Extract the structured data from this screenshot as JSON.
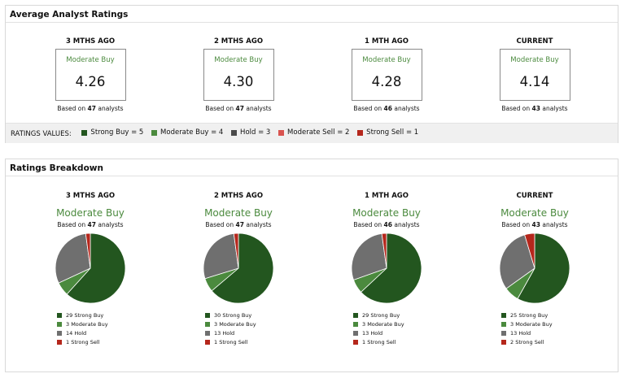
{
  "colors": {
    "strong_buy": "#23561f",
    "moderate_buy": "#4b8a3e",
    "hold": "#6f6f6f",
    "moderate_sell": "#d9534f",
    "strong_sell": "#b5271c"
  },
  "average": {
    "title": "Average Analyst Ratings",
    "based_prefix": "Based on",
    "based_suffix": "analysts",
    "periods": [
      {
        "label": "3 MTHS AGO",
        "rating": "Moderate Buy",
        "value": "4.26",
        "analysts": "47"
      },
      {
        "label": "2 MTHS AGO",
        "rating": "Moderate Buy",
        "value": "4.30",
        "analysts": "47"
      },
      {
        "label": "1 MTH AGO",
        "rating": "Moderate Buy",
        "value": "4.28",
        "analysts": "46"
      },
      {
        "label": "CURRENT",
        "rating": "Moderate Buy",
        "value": "4.14",
        "analysts": "43"
      }
    ]
  },
  "ratings_values": {
    "label": "RATINGS VALUES:",
    "items": [
      {
        "text": "Strong Buy = 5",
        "color": "#23561f"
      },
      {
        "text": "Moderate Buy = 4",
        "color": "#4b8a3e"
      },
      {
        "text": "Hold = 3",
        "color": "#4a4a4a"
      },
      {
        "text": "Moderate Sell = 2",
        "color": "#d9534f"
      },
      {
        "text": "Strong Sell = 1",
        "color": "#b5271c"
      }
    ]
  },
  "breakdown": {
    "title": "Ratings Breakdown",
    "periods": [
      {
        "label": "3 MTHS AGO",
        "rating": "Moderate Buy",
        "analysts": "47",
        "legend": [
          "29 Strong Buy",
          "3 Moderate Buy",
          "14 Hold",
          "1 Strong Sell"
        ]
      },
      {
        "label": "2 MTHS AGO",
        "rating": "Moderate Buy",
        "analysts": "47",
        "legend": [
          "30 Strong Buy",
          "3 Moderate Buy",
          "13 Hold",
          "1 Strong Sell"
        ]
      },
      {
        "label": "1 MTH AGO",
        "rating": "Moderate Buy",
        "analysts": "46",
        "legend": [
          "29 Strong Buy",
          "3 Moderate Buy",
          "13 Hold",
          "1 Strong Sell"
        ]
      },
      {
        "label": "CURRENT",
        "rating": "Moderate Buy",
        "analysts": "43",
        "legend": [
          "25 Strong Buy",
          "3 Moderate Buy",
          "13 Hold",
          "2 Strong Sell"
        ]
      }
    ]
  },
  "chart_data": [
    {
      "type": "pie",
      "categories": [
        "Strong Buy",
        "Moderate Buy",
        "Hold",
        "Strong Sell"
      ],
      "values": [
        29,
        3,
        14,
        1
      ]
    },
    {
      "type": "pie",
      "categories": [
        "Strong Buy",
        "Moderate Buy",
        "Hold",
        "Strong Sell"
      ],
      "values": [
        30,
        3,
        13,
        1
      ]
    },
    {
      "type": "pie",
      "categories": [
        "Strong Buy",
        "Moderate Buy",
        "Hold",
        "Strong Sell"
      ],
      "values": [
        29,
        3,
        13,
        1
      ]
    },
    {
      "type": "pie",
      "categories": [
        "Strong Buy",
        "Moderate Buy",
        "Hold",
        "Strong Sell"
      ],
      "values": [
        25,
        3,
        13,
        2
      ]
    }
  ]
}
